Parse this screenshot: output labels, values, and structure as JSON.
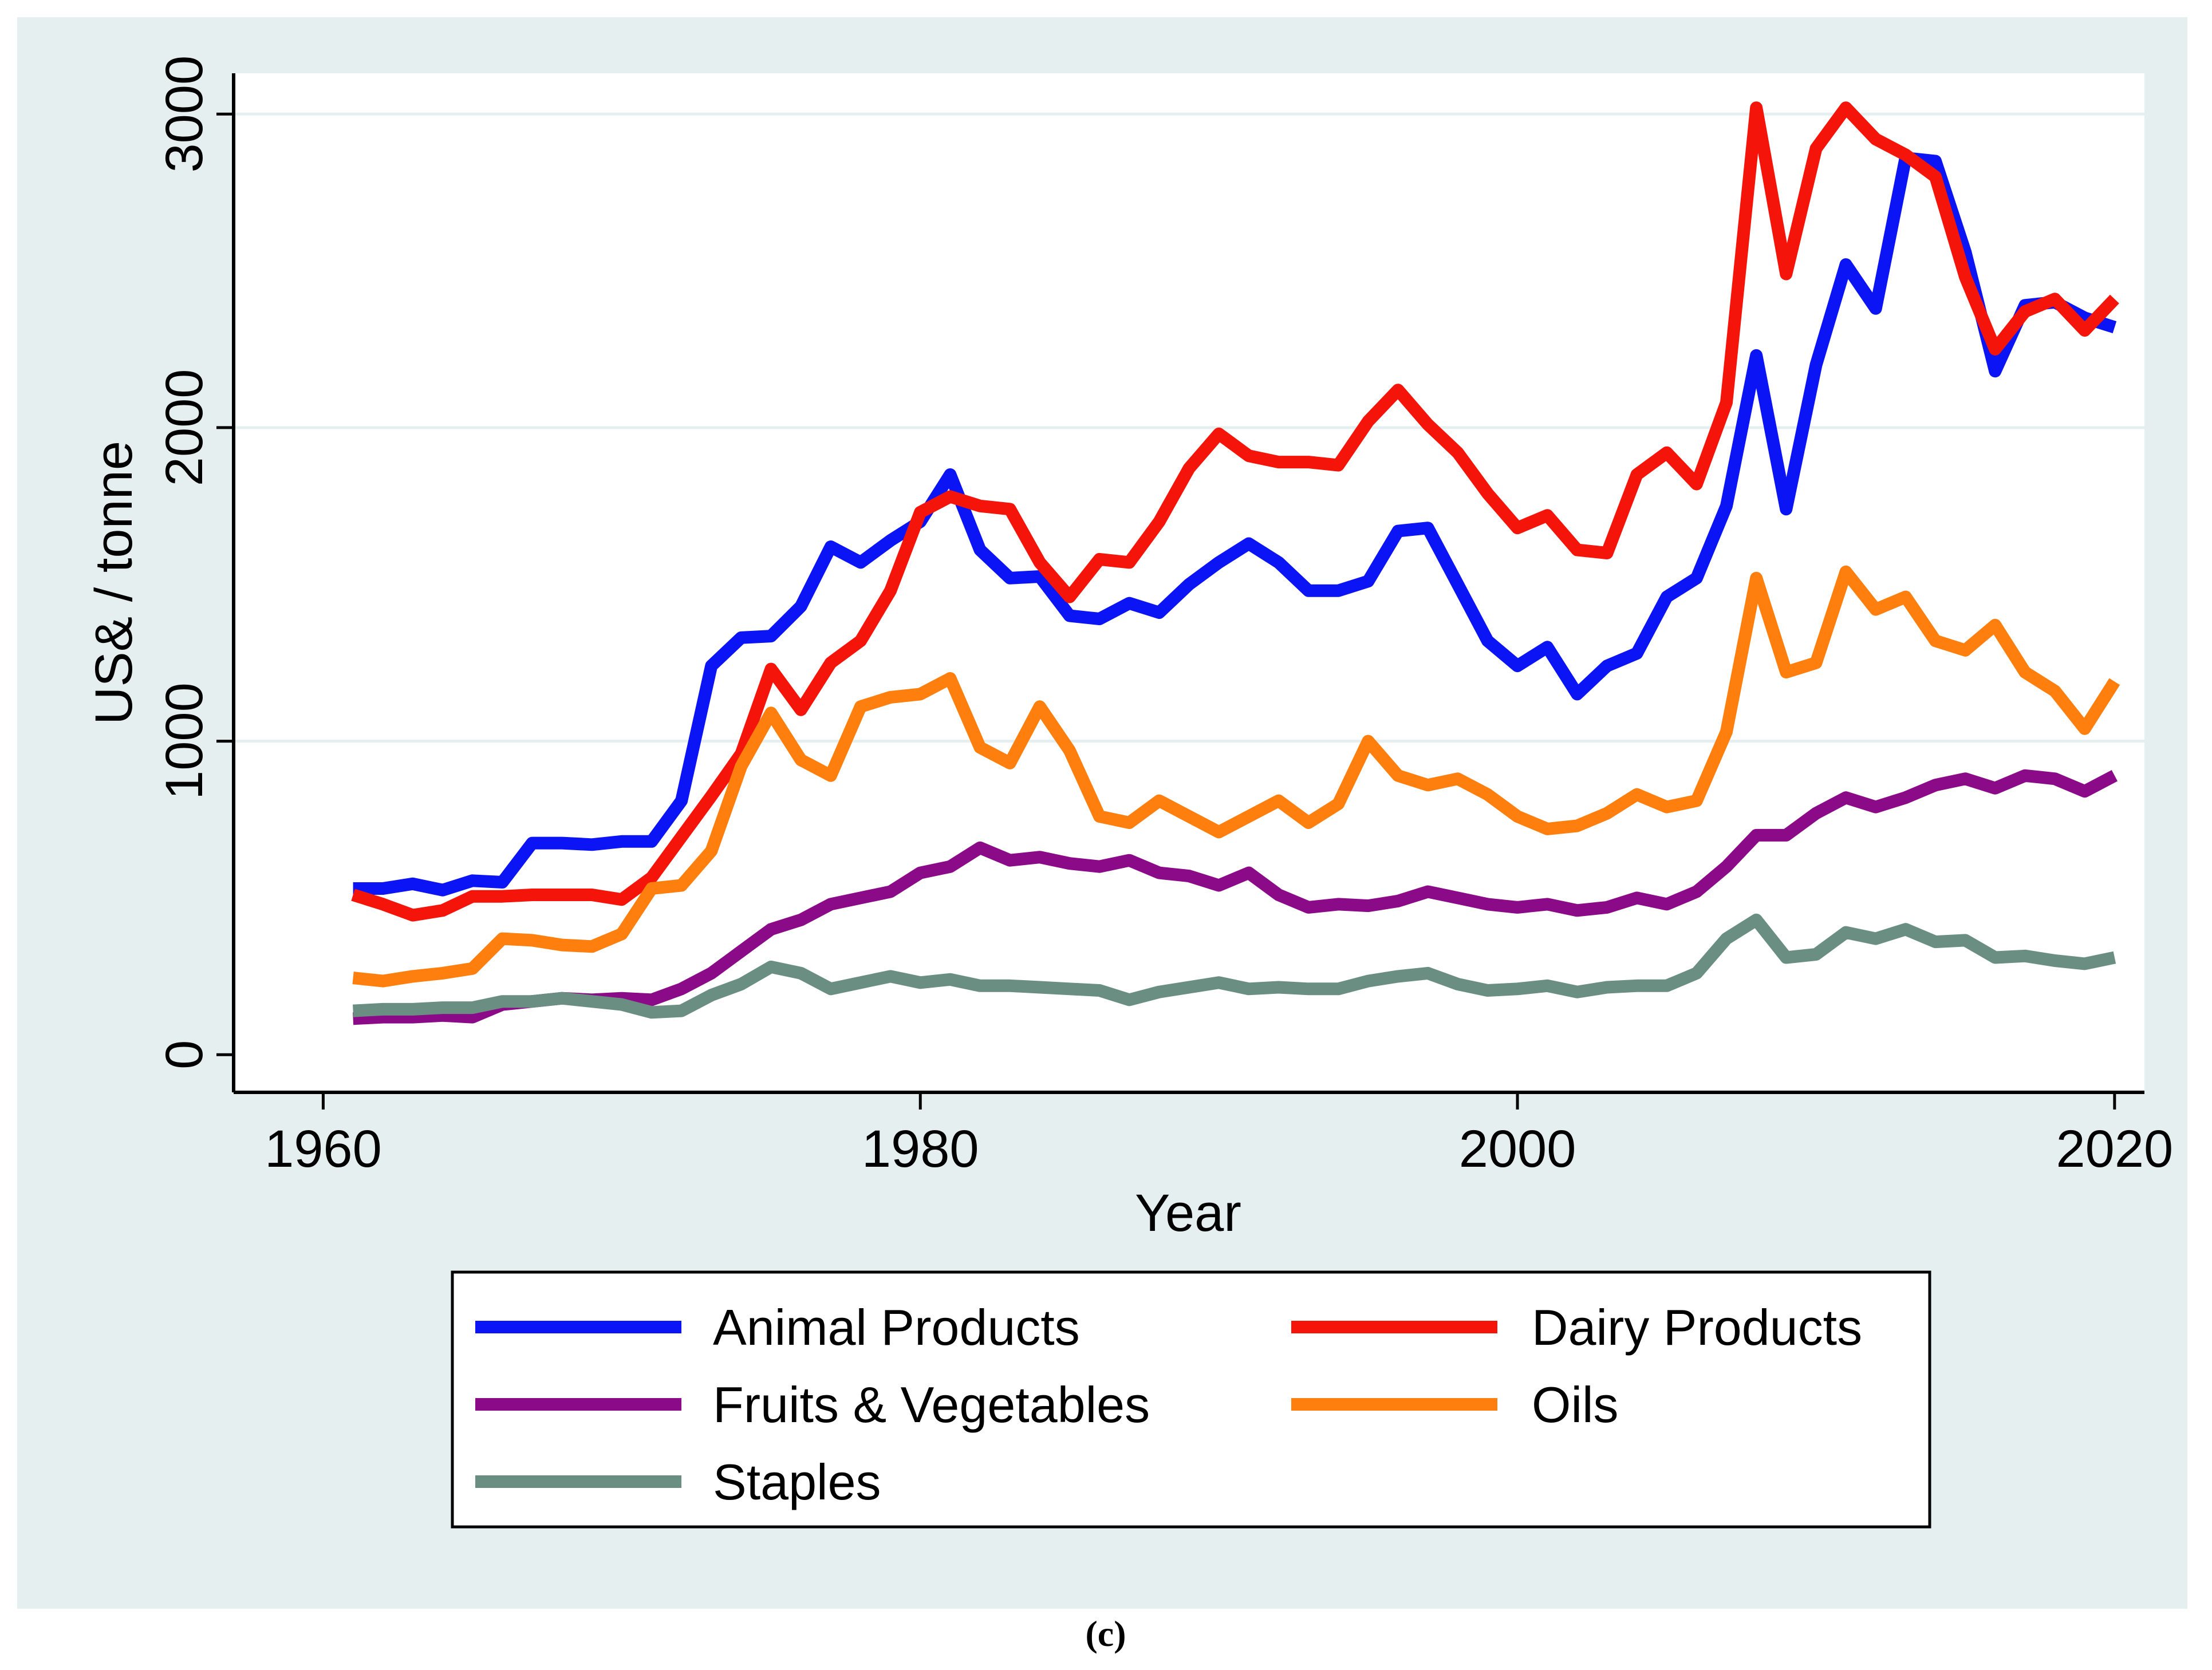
{
  "caption": "(c)",
  "chart_data": {
    "type": "line",
    "xlabel": "Year",
    "ylabel": "US& / tonne",
    "xlim": [
      1957,
      2021
    ],
    "ylim": [
      -120,
      3130
    ],
    "x_ticks": [
      1960,
      1980,
      2000,
      2020
    ],
    "x_tick_labels": [
      "1960",
      "1980",
      "2000",
      "2020"
    ],
    "y_ticks": [
      0,
      1000,
      2000,
      3000
    ],
    "y_tick_labels": [
      "0",
      "1000",
      "2000",
      "3000"
    ],
    "grid": true,
    "legend_position": "bottom",
    "x": [
      1961,
      1962,
      1963,
      1964,
      1965,
      1966,
      1967,
      1968,
      1969,
      1970,
      1971,
      1972,
      1973,
      1974,
      1975,
      1976,
      1977,
      1978,
      1979,
      1980,
      1981,
      1982,
      1983,
      1984,
      1985,
      1986,
      1987,
      1988,
      1989,
      1990,
      1991,
      1992,
      1993,
      1994,
      1995,
      1996,
      1997,
      1998,
      1999,
      2000,
      2001,
      2002,
      2003,
      2004,
      2005,
      2006,
      2007,
      2008,
      2009,
      2010,
      2011,
      2012,
      2013,
      2014,
      2015,
      2016,
      2017,
      2018,
      2019,
      2020
    ],
    "series": [
      {
        "name": "Animal Products",
        "color": "#0a14f5",
        "values": [
          530,
          530,
          545,
          525,
          555,
          550,
          675,
          675,
          670,
          680,
          680,
          810,
          1240,
          1330,
          1335,
          1430,
          1620,
          1570,
          1640,
          1700,
          1850,
          1610,
          1520,
          1525,
          1400,
          1390,
          1440,
          1410,
          1500,
          1570,
          1630,
          1570,
          1480,
          1480,
          1510,
          1670,
          1680,
          1500,
          1320,
          1240,
          1300,
          1150,
          1240,
          1280,
          1460,
          1520,
          1750,
          2230,
          1740,
          2200,
          2520,
          2380,
          2860,
          2850,
          2560,
          2180,
          2390,
          2400,
          2350,
          2320
        ]
      },
      {
        "name": "Dairy Products",
        "color": "#f5140a",
        "values": [
          510,
          480,
          445,
          460,
          505,
          505,
          510,
          510,
          510,
          495,
          565,
          695,
          825,
          960,
          1230,
          1100,
          1250,
          1320,
          1480,
          1730,
          1780,
          1750,
          1740,
          1570,
          1460,
          1580,
          1570,
          1700,
          1870,
          1980,
          1910,
          1890,
          1890,
          1880,
          2020,
          2120,
          2010,
          1920,
          1790,
          1680,
          1720,
          1610,
          1600,
          1850,
          1920,
          1820,
          2080,
          3020,
          2490,
          2890,
          3020,
          2920,
          2870,
          2800,
          2480,
          2250,
          2370,
          2410,
          2310,
          2410
        ]
      },
      {
        "name": "Fruits & Vegetables",
        "color": "#8b0a88",
        "values": [
          115,
          120,
          120,
          125,
          120,
          160,
          170,
          180,
          175,
          180,
          175,
          210,
          260,
          330,
          400,
          430,
          480,
          500,
          520,
          580,
          600,
          660,
          620,
          630,
          610,
          600,
          620,
          580,
          570,
          540,
          580,
          510,
          470,
          480,
          475,
          490,
          520,
          500,
          480,
          470,
          480,
          460,
          470,
          500,
          480,
          520,
          600,
          700,
          700,
          770,
          820,
          790,
          820,
          860,
          880,
          850,
          890,
          880,
          840,
          890
        ]
      },
      {
        "name": "Oils",
        "color": "#ff7f0e",
        "values": [
          245,
          235,
          250,
          260,
          275,
          370,
          365,
          350,
          345,
          385,
          530,
          540,
          650,
          920,
          1090,
          940,
          890,
          1110,
          1140,
          1150,
          1200,
          980,
          930,
          1110,
          970,
          760,
          740,
          810,
          760,
          710,
          760,
          810,
          740,
          800,
          1000,
          890,
          860,
          880,
          830,
          760,
          720,
          730,
          770,
          830,
          790,
          810,
          1030,
          1520,
          1220,
          1250,
          1540,
          1420,
          1460,
          1320,
          1290,
          1370,
          1220,
          1160,
          1040,
          1190
        ]
      },
      {
        "name": "Staples",
        "color": "#6a8f82",
        "values": [
          140,
          145,
          145,
          150,
          150,
          170,
          170,
          180,
          170,
          160,
          135,
          140,
          190,
          225,
          280,
          260,
          210,
          230,
          250,
          230,
          240,
          220,
          220,
          215,
          210,
          205,
          175,
          200,
          215,
          230,
          210,
          215,
          210,
          210,
          235,
          250,
          260,
          225,
          205,
          210,
          220,
          200,
          215,
          220,
          220,
          260,
          370,
          430,
          310,
          320,
          390,
          370,
          400,
          360,
          365,
          310,
          315,
          300,
          290,
          310
        ]
      }
    ]
  }
}
